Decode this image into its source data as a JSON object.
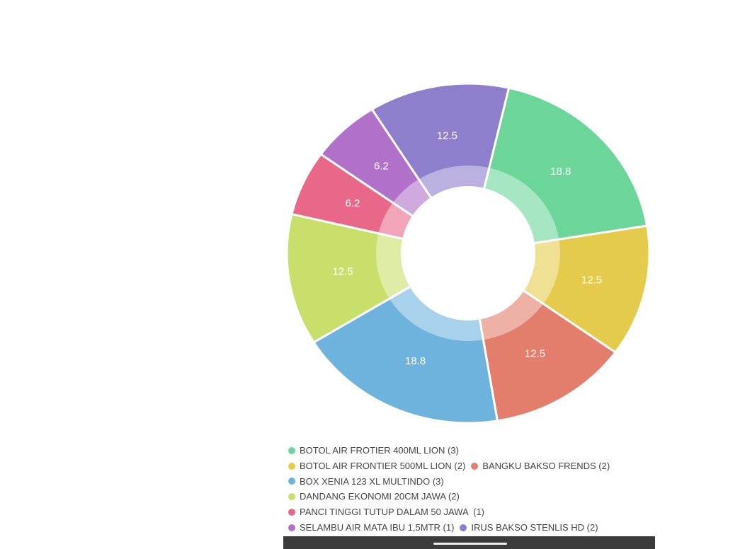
{
  "chart_data": {
    "type": "donut",
    "categories": [
      "BOTOL AIR FROTIER 400ML LION (3)",
      "BOTOL AIR FRONTIER 500ML LION (2)",
      "BANGKU BAKSO FRENDS (2)",
      "BOX XENIA 123 XL MULTINDO (3)",
      "DANDANG EKONOMI 20CM JAWA (2)",
      "PANCI TINGGI TUTUP DALAM 50 JAWA  (1)",
      "SELAMBU AIR MATA IBU 1,5MTR (1)",
      "IRUS BAKSO STENLIS HD (2)"
    ],
    "values": [
      18.8,
      12.5,
      12.5,
      18.8,
      12.5,
      6.2,
      6.2,
      12.5
    ],
    "colors": [
      "#6cd69a",
      "#e4cb4c",
      "#e27e6b",
      "#6eb3de",
      "#c8df6b",
      "#e9688a",
      "#b170c9",
      "#8e7ecb"
    ]
  }
}
